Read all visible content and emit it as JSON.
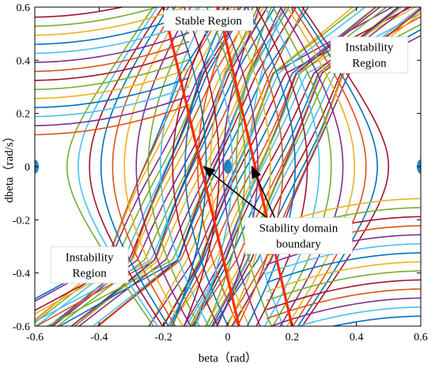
{
  "chart_data": {
    "type": "line",
    "title": "",
    "xlabel": "beta（rad）",
    "ylabel": "dbeta（rad/s）",
    "xlim": [
      -0.6,
      0.6
    ],
    "ylim": [
      -0.6,
      0.6
    ],
    "x_ticks": [
      "-0.6",
      "-0.4",
      "-0.2",
      "0",
      "0.2",
      "0.4",
      "0.6"
    ],
    "y_ticks": [
      "-0.6",
      "-0.4",
      "-0.2",
      "0",
      "0.2",
      "0.4",
      "0.6"
    ],
    "grid": false,
    "legend": "none",
    "boundary_lines": [
      {
        "color": "#ff2a00",
        "points": [
          [
            -0.2,
            0.6
          ],
          [
            0.035,
            -0.6
          ]
        ]
      },
      {
        "color": "#ff2a00",
        "points": [
          [
            -0.03,
            0.6
          ],
          [
            0.2,
            -0.6
          ]
        ]
      }
    ],
    "equilibrium_points": [
      [
        0,
        0
      ],
      [
        -0.6,
        0
      ],
      [
        0.6,
        0
      ]
    ],
    "trajectory_colors": [
      "#0072bd",
      "#d95319",
      "#edb120",
      "#7e2f8e",
      "#77ac30",
      "#4dbeee",
      "#a2142f"
    ],
    "annotations": [
      {
        "text": "Stable Region",
        "x": -0.06,
        "y": 0.55
      },
      {
        "text": "Instability Region",
        "x": 0.44,
        "y": 0.42,
        "lines": [
          "Instability",
          "Region"
        ]
      },
      {
        "text": "Instability Region",
        "x": -0.43,
        "y": -0.37,
        "lines": [
          "Instability",
          "Region"
        ]
      },
      {
        "text": "Stability domain boundary",
        "x": 0.22,
        "y": -0.26,
        "lines": [
          "Stability domain",
          "boundary"
        ]
      }
    ],
    "arrows": [
      {
        "from": [
          0.16,
          -0.23
        ],
        "to": [
          -0.075,
          0.0
        ]
      },
      {
        "from": [
          0.16,
          -0.23
        ],
        "to": [
          0.075,
          0.0
        ]
      }
    ]
  }
}
